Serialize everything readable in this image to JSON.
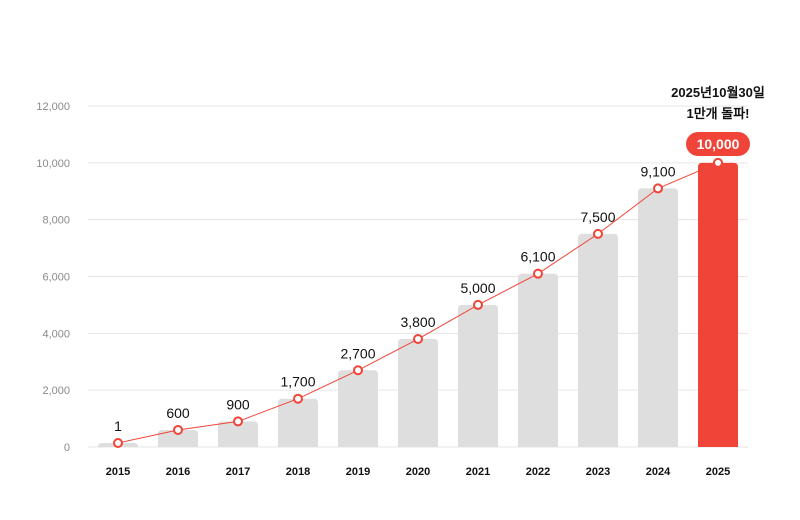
{
  "chart_data": {
    "type": "bar",
    "categories": [
      "2015",
      "2016",
      "2017",
      "2018",
      "2019",
      "2020",
      "2021",
      "2022",
      "2023",
      "2024",
      "2025"
    ],
    "values": [
      1,
      600,
      900,
      1700,
      2700,
      3800,
      5000,
      6100,
      7500,
      9100,
      10000
    ],
    "data_labels": [
      "1",
      "600",
      "900",
      "1,700",
      "2,700",
      "3,800",
      "5,000",
      "6,100",
      "7,500",
      "9,100",
      "10,000"
    ],
    "yticks": [
      "0",
      "2,000",
      "4,000",
      "6,000",
      "8,000",
      "10,000",
      "12,000"
    ],
    "ytick_values": [
      0,
      2000,
      4000,
      6000,
      8000,
      10000,
      12000
    ],
    "ylim": [
      0,
      12000
    ],
    "grid": true,
    "overlay_line": true,
    "title": "",
    "xlabel": "",
    "ylabel": "",
    "highlight_index": 10,
    "annotation": {
      "line1": "2025년10월30일",
      "line2": "1만개 돌파!"
    },
    "colors": {
      "bar": "#dedede",
      "highlight": "#f04438",
      "line": "#f04438",
      "grid": "#e6e6e6"
    }
  }
}
